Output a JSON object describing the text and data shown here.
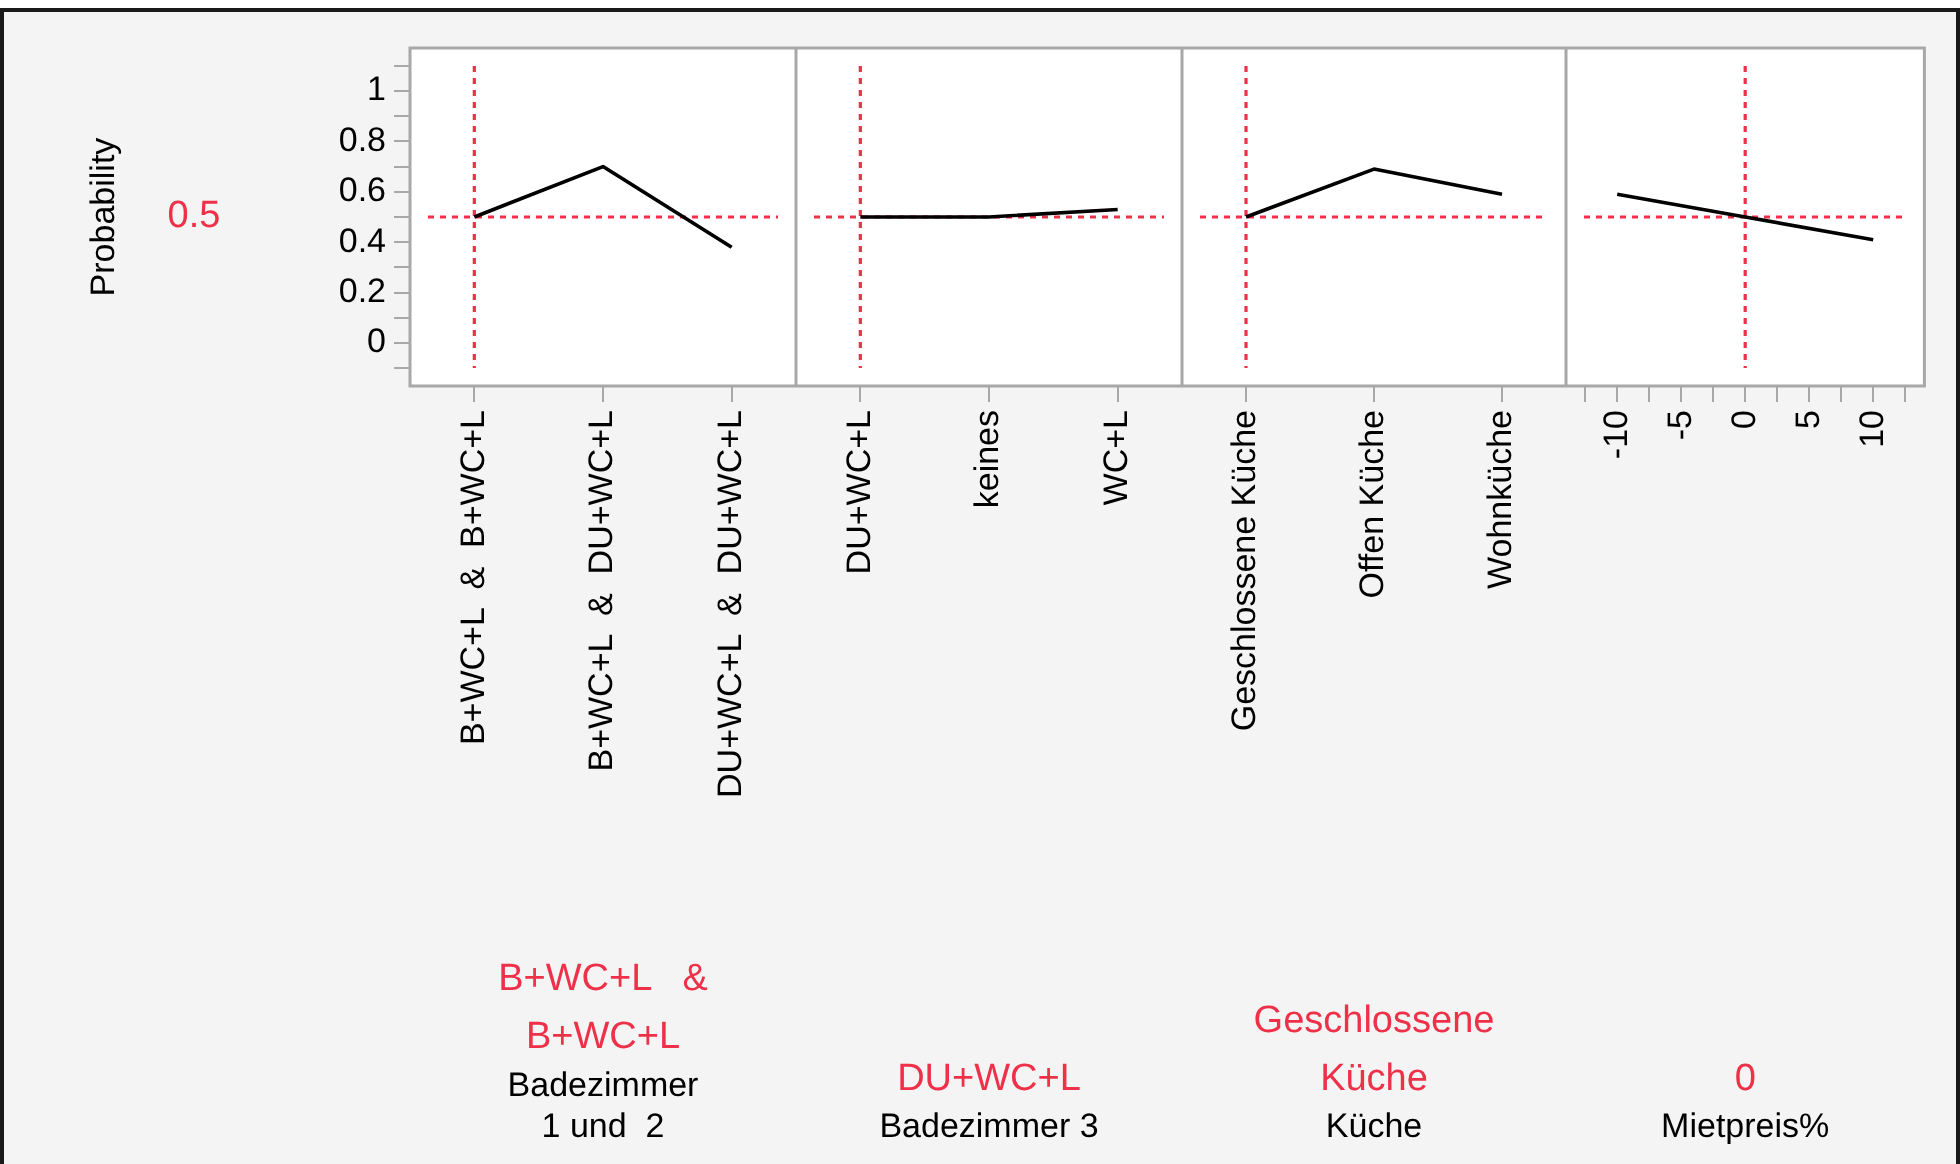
{
  "chart_data": [
    {
      "type": "line",
      "categories": [
        "B+WC+L  &  B+WC+L",
        "B+WC+L  &  DU+WC+L",
        "DU+WC+L  &  DU+WC+L"
      ],
      "values": [
        0.5,
        0.7,
        0.38
      ],
      "color": "#000000",
      "marker": "none",
      "ylim": [
        -0.17,
        1.17
      ],
      "yticks": [
        {
          "value": -0.1,
          "label": null
        },
        0,
        {
          "value": 0.1,
          "label": null
        },
        0.2,
        {
          "value": 0.3,
          "label": null
        },
        0.4,
        {
          "value": 0.5,
          "label": null
        },
        0.6,
        {
          "value": 0.7,
          "label": null
        },
        0.8,
        {
          "value": 0.9,
          "label": null
        },
        1,
        {
          "value": 1.1,
          "label": null
        }
      ],
      "ylabel": "Probability",
      "xlabel": "Badezimmer\n1 und  2",
      "annotations": [
        "0.5",
        "B+WC+L   &\nB+WC+L"
      ],
      "ref_lines": [
        {
          "axis": "y",
          "value": 0.5,
          "color": "#ee3049",
          "line_style": "dotted"
        },
        {
          "axis": "x",
          "value": "B+WC+L  &  B+WC+L",
          "color": "#ee3049",
          "line_style": "dotted"
        }
      ]
    },
    {
      "type": "line",
      "categories": [
        "DU+WC+L",
        "keines",
        "WC+L"
      ],
      "values": [
        0.5,
        0.5,
        0.53
      ],
      "color": "#000000",
      "marker": "none",
      "ylim": [
        -0.17,
        1.17
      ],
      "tick_labels": "x",
      "xlabel": "Badezimmer 3",
      "annotations": [
        "DU+WC+L"
      ],
      "ref_lines": [
        {
          "axis": "y",
          "value": 0.5,
          "color": "#ee3049",
          "line_style": "dotted"
        },
        {
          "axis": "x",
          "value": "DU+WC+L",
          "color": "#ee3049",
          "line_style": "dotted"
        }
      ]
    },
    {
      "type": "line",
      "categories": [
        "Geschlossene Küche",
        "Offen Küche",
        "Wohnküche"
      ],
      "values": [
        0.5,
        0.69,
        0.59
      ],
      "color": "#000000",
      "marker": "none",
      "ylim": [
        -0.17,
        1.17
      ],
      "tick_labels": "x",
      "xlabel": "Küche",
      "annotations": [
        "Geschlossene\nKüche"
      ],
      "ref_lines": [
        {
          "axis": "y",
          "value": 0.5,
          "color": "#ee3049",
          "line_style": "dotted"
        },
        {
          "axis": "x",
          "value": "Geschlossene Küche",
          "color": "#ee3049",
          "line_style": "dotted"
        }
      ]
    },
    {
      "type": "line",
      "x": [
        -10,
        0,
        10
      ],
      "values": [
        0.59,
        0.5,
        0.41
      ],
      "color": "#000000",
      "marker": "none",
      "xlim": [
        -14,
        14
      ],
      "xticks": [
        {
          "value": -12.5,
          "label": null
        },
        -10,
        {
          "value": -7.5,
          "label": null
        },
        -5,
        {
          "value": -2.5,
          "label": null
        },
        0,
        {
          "value": 2.5,
          "label": null
        },
        5,
        {
          "value": 7.5,
          "label": null
        },
        10,
        {
          "value": 12.5,
          "label": null
        }
      ],
      "ylim": [
        -0.17,
        1.17
      ],
      "tick_labels": "x",
      "xlabel": "Mietpreis%",
      "annotations": [
        "0"
      ],
      "ref_lines": [
        {
          "axis": "y",
          "value": 0.5,
          "color": "#ee3049",
          "line_style": "dotted"
        },
        {
          "axis": "x",
          "value": 0,
          "color": "#ee3049",
          "line_style": "dotted"
        }
      ]
    }
  ]
}
